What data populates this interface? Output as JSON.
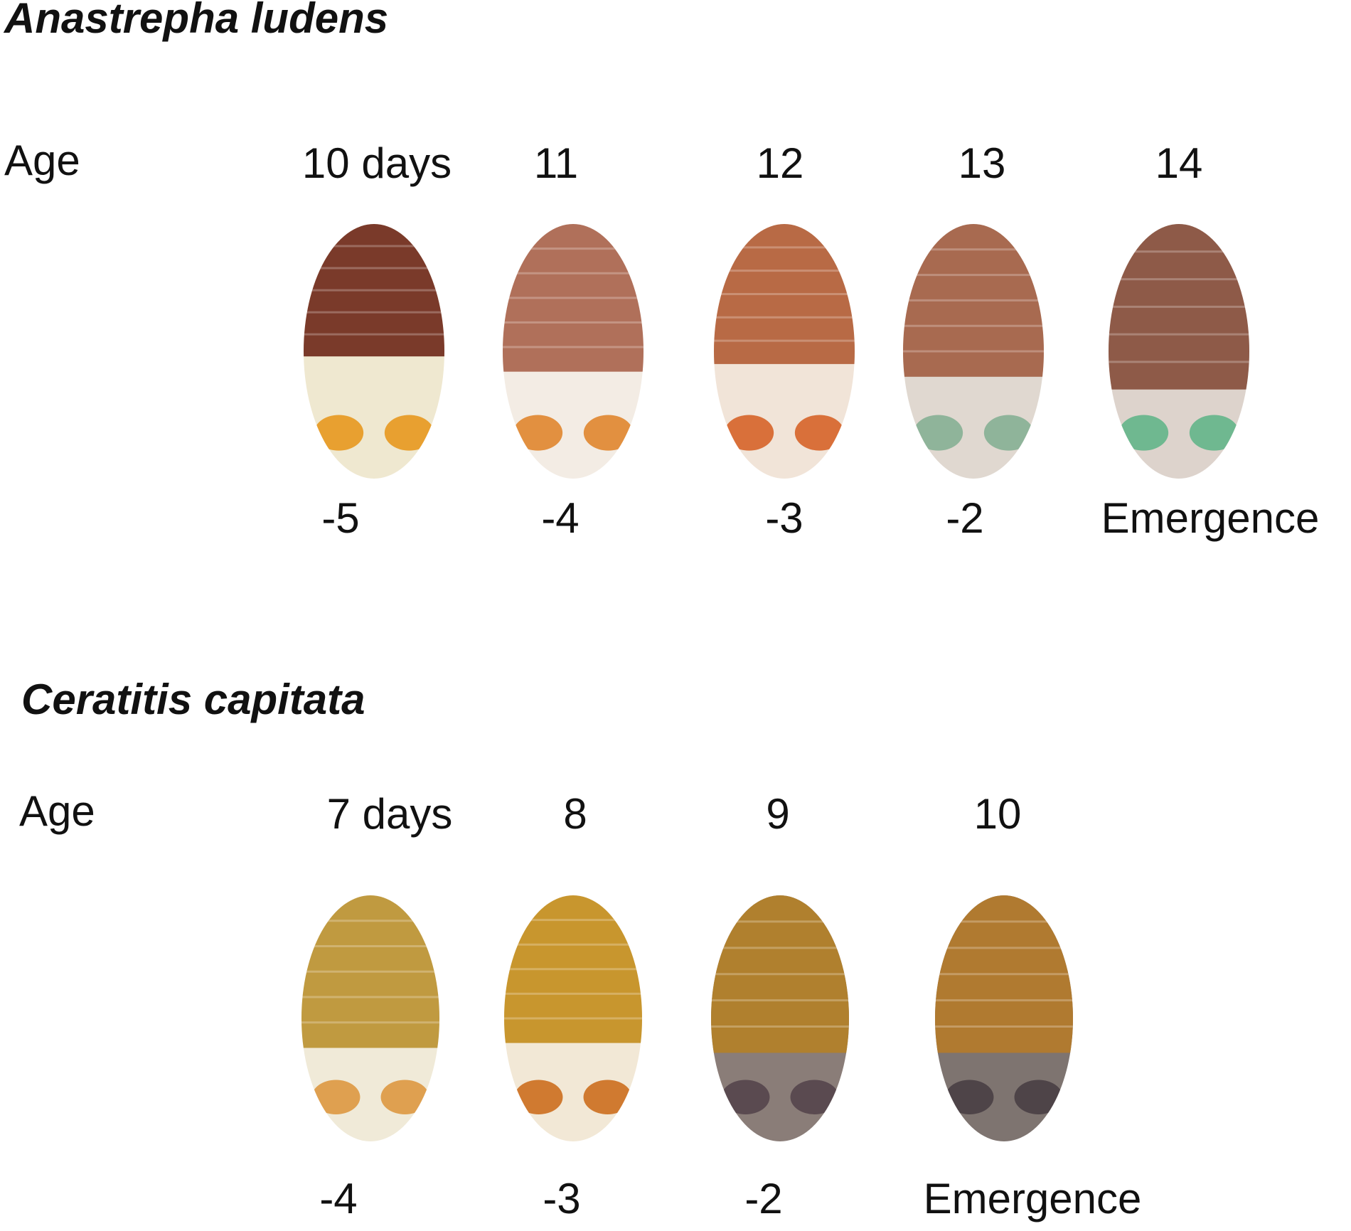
{
  "panels": [
    {
      "title": "Anastrepha ludens",
      "age_label": "Age",
      "ages": [
        "10 days",
        "11",
        "12",
        "13",
        "14"
      ],
      "labels": [
        "-5",
        "-4",
        "-3",
        "-2",
        "Emergence"
      ]
    },
    {
      "title": "Ceratitis capitata",
      "age_label": "Age",
      "ages": [
        "7 days",
        "8",
        "9",
        "10"
      ],
      "labels": [
        "-4",
        "-3",
        "-2",
        "Emergence"
      ]
    }
  ]
}
